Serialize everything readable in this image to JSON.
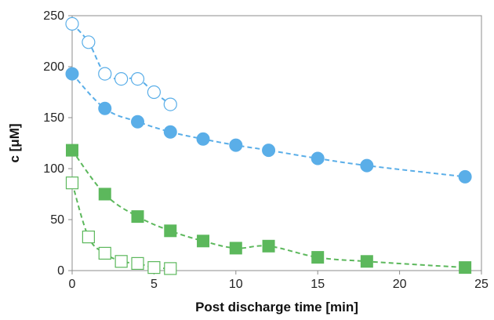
{
  "chart_data": {
    "type": "scatter",
    "title": "",
    "xlabel": "Post discharge time [min]",
    "ylabel": "c [μM]",
    "xlim": [
      0,
      25
    ],
    "ylim": [
      0,
      250
    ],
    "xticks": [
      0,
      5,
      10,
      15,
      20,
      25
    ],
    "yticks": [
      0,
      50,
      100,
      150,
      200,
      250
    ],
    "grid": false,
    "legend": "none",
    "series": [
      {
        "marker": "circle-open",
        "color": "#5aaee8",
        "line_style": "dashed",
        "x": [
          0,
          1,
          2,
          3,
          4,
          5,
          6
        ],
        "y": [
          242,
          224,
          193,
          188,
          188,
          175,
          163
        ]
      },
      {
        "marker": "circle-filled",
        "color": "#5aaee8",
        "line_style": "dashed",
        "x": [
          0,
          2,
          4,
          6,
          8,
          10,
          12,
          15,
          18,
          24
        ],
        "y": [
          193,
          159,
          146,
          136,
          129,
          123,
          118,
          110,
          103,
          92
        ]
      },
      {
        "marker": "square-filled",
        "color": "#5cb85c",
        "line_style": "dashed",
        "x": [
          0,
          2,
          4,
          6,
          8,
          10,
          12,
          15,
          18,
          24
        ],
        "y": [
          118,
          75,
          53,
          39,
          29,
          22,
          24,
          13,
          9,
          3
        ]
      },
      {
        "marker": "square-open",
        "color": "#5cb85c",
        "line_style": "dashed",
        "x": [
          0,
          1,
          2,
          3,
          4,
          5,
          6
        ],
        "y": [
          86,
          33,
          17,
          9,
          7,
          3,
          2
        ]
      }
    ]
  }
}
